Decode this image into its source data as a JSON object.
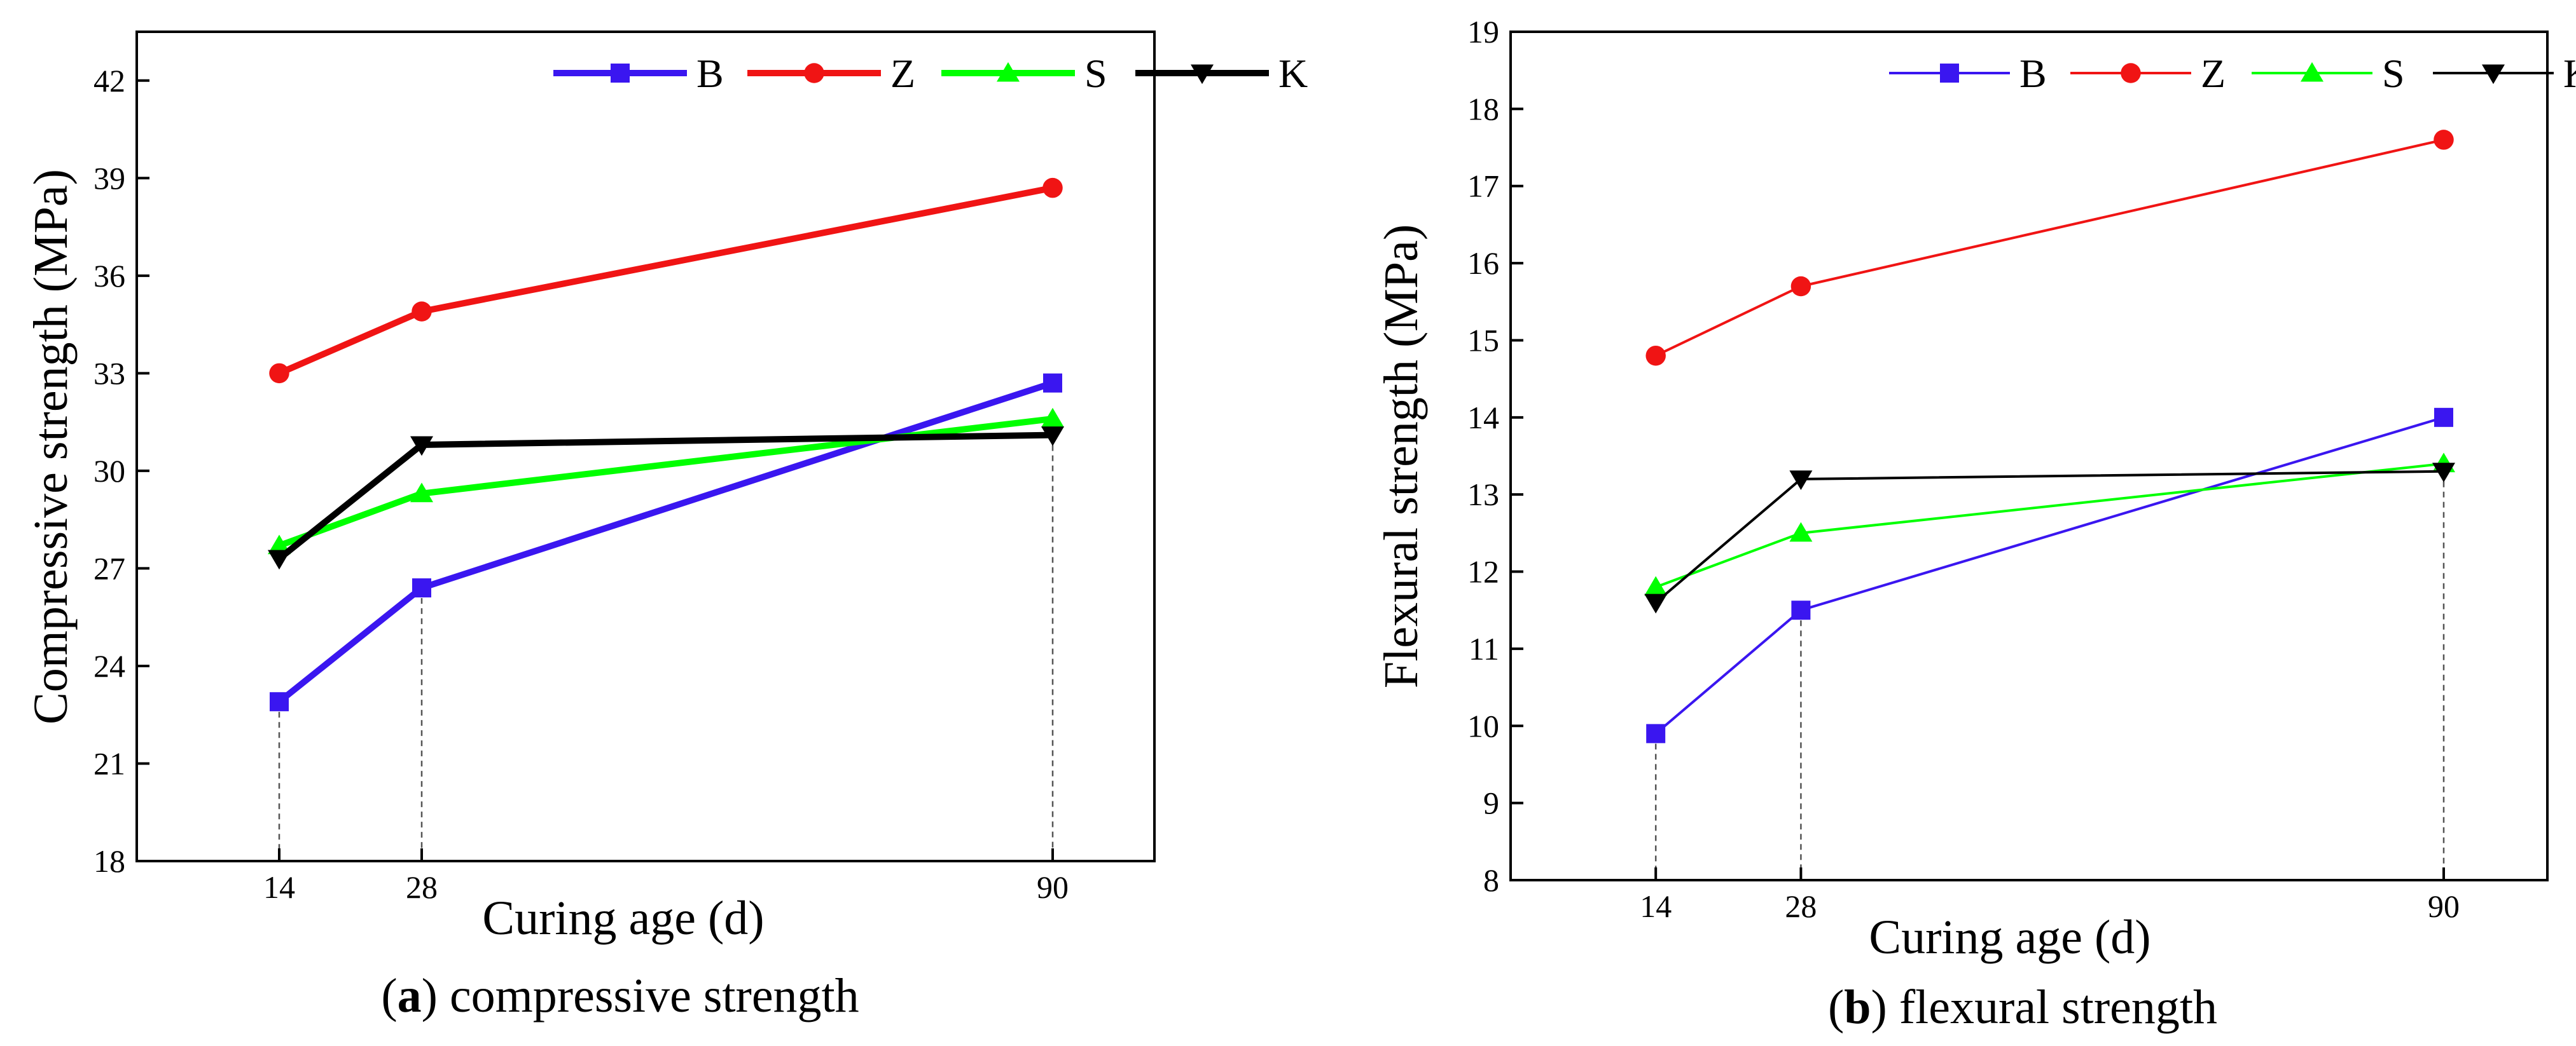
{
  "figure": {
    "panels": [
      {
        "caption_letter": "a",
        "caption_text": " compressive strength"
      },
      {
        "caption_letter": "b",
        "caption_text": " flexural strength"
      }
    ]
  },
  "chart_data": [
    {
      "type": "line",
      "title": "",
      "xlabel": "Curing age (d)",
      "ylabel": "Compressive strength (MPa)",
      "x": [
        14,
        28,
        90
      ],
      "x_tick_labels": [
        "14",
        "28",
        "90"
      ],
      "xlim": [
        0,
        100
      ],
      "ylim": [
        18,
        43.5
      ],
      "y_ticks": [
        18,
        21,
        24,
        27,
        30,
        33,
        36,
        39,
        42
      ],
      "legend_position": "top-right",
      "dashed_drop_lines_at": [
        14,
        28,
        90
      ],
      "series": [
        {
          "name": "B",
          "values": [
            22.9,
            26.4,
            32.7
          ],
          "color": "#3a16f0",
          "marker": "square"
        },
        {
          "name": "Z",
          "values": [
            33.0,
            34.9,
            38.7
          ],
          "color": "#f01414",
          "marker": "circle"
        },
        {
          "name": "S",
          "values": [
            27.7,
            29.3,
            31.6
          ],
          "color": "#00ff00",
          "marker": "triangle-up"
        },
        {
          "name": "K",
          "values": [
            27.3,
            30.8,
            31.1
          ],
          "color": "#000000",
          "marker": "triangle-down"
        }
      ]
    },
    {
      "type": "line",
      "title": "",
      "xlabel": "Curing age (d)",
      "ylabel": "Flexural strength (MPa)",
      "x": [
        14,
        28,
        90
      ],
      "x_tick_labels": [
        "14",
        "28",
        "90"
      ],
      "xlim": [
        0,
        100
      ],
      "ylim": [
        8,
        19
      ],
      "y_ticks": [
        8,
        9,
        10,
        11,
        12,
        13,
        14,
        15,
        16,
        17,
        18,
        19
      ],
      "legend_position": "top-right",
      "dashed_drop_lines_at": [
        14,
        28,
        90
      ],
      "series": [
        {
          "name": "B",
          "values": [
            9.9,
            11.5,
            14.0
          ],
          "color": "#3a16f0",
          "marker": "square"
        },
        {
          "name": "Z",
          "values": [
            14.8,
            15.7,
            17.6
          ],
          "color": "#f01414",
          "marker": "circle"
        },
        {
          "name": "S",
          "values": [
            11.8,
            12.5,
            13.4
          ],
          "color": "#00ff00",
          "marker": "triangle-up"
        },
        {
          "name": "K",
          "values": [
            11.6,
            13.2,
            13.3
          ],
          "color": "#000000",
          "marker": "triangle-down"
        }
      ]
    }
  ]
}
